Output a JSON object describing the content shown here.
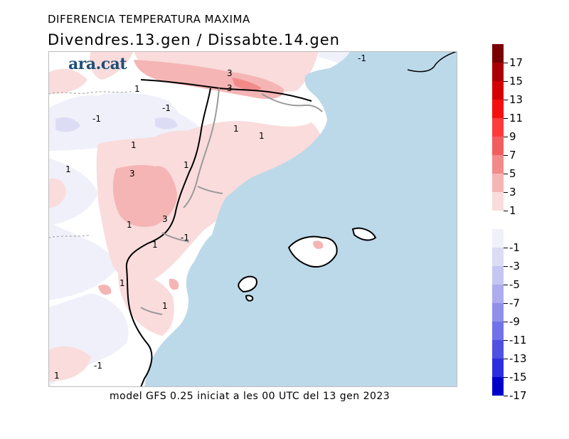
{
  "title_top": "DIFERENCIA TEMPERATURA MAXIMA",
  "title_dates": "Divendres.13.gen / Dissabte.14.gen",
  "footer": "model GFS 0.25 iniciat a les 00 UTC del 13 gen 2023",
  "logo": "ara.cat",
  "contour_labels": [
    "3",
    "3",
    "1",
    "-1",
    "-1",
    "1",
    "1",
    "1",
    "3",
    "1",
    "1",
    "3",
    "1",
    "-1",
    "1",
    "1",
    "1",
    "-1",
    "1",
    "-1"
  ],
  "legend": {
    "positive": [
      {
        "label": "17",
        "color": "#7a0000"
      },
      {
        "label": "15",
        "color": "#a80000"
      },
      {
        "label": "13",
        "color": "#d40000"
      },
      {
        "label": "11",
        "color": "#f51010"
      },
      {
        "label": "9",
        "color": "#ff3a3a"
      },
      {
        "label": "7",
        "color": "#f25e5e"
      },
      {
        "label": "5",
        "color": "#f28a8a"
      },
      {
        "label": "3",
        "color": "#f5b5b5"
      },
      {
        "label": "1",
        "color": "#fadcdc"
      }
    ],
    "negative": [
      {
        "label": "-1",
        "color": "#f0f0fa"
      },
      {
        "label": "-3",
        "color": "#dcdcf5"
      },
      {
        "label": "-5",
        "color": "#c6c6f2"
      },
      {
        "label": "-7",
        "color": "#acacee"
      },
      {
        "label": "-9",
        "color": "#9090eb"
      },
      {
        "label": "-11",
        "color": "#7272e8"
      },
      {
        "label": "-13",
        "color": "#5050e2"
      },
      {
        "label": "-15",
        "color": "#2e2ee0"
      },
      {
        "label": "-17",
        "color": "#0000c8"
      }
    ]
  },
  "colors": {
    "sea": "#bcd9ea",
    "land": "#ffffff",
    "warm_light": "#fadcdc",
    "warm_mid": "#f5b5b5",
    "warm_strong": "#f28a8a",
    "cool_light": "#f0f0fa",
    "cool_mid": "#dcdcf5"
  }
}
